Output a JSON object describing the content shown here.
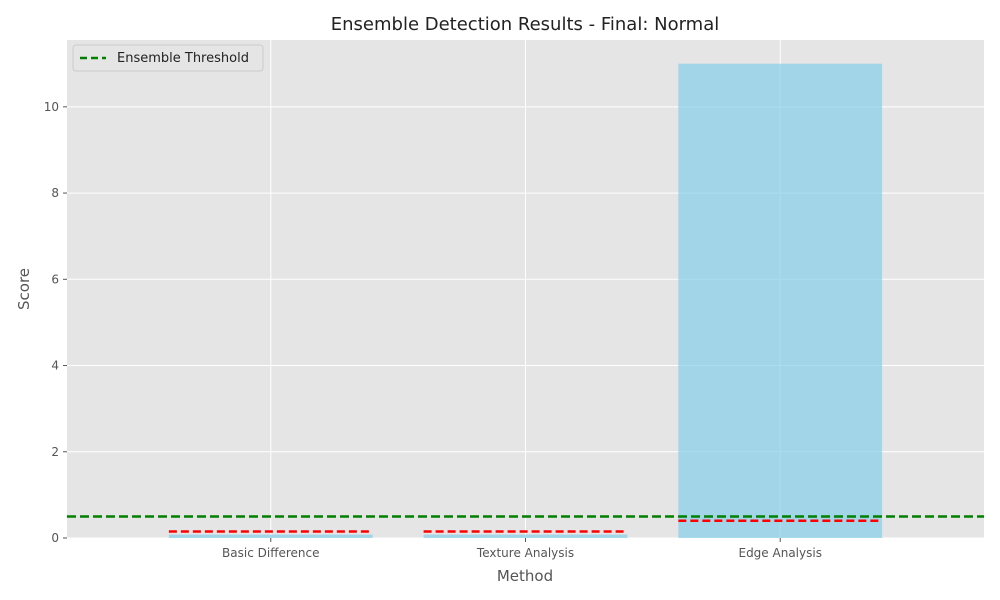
{
  "chart_data": {
    "type": "bar",
    "title": "Ensemble Detection Results - Final: Normal",
    "xlabel": "Method",
    "ylabel": "Score",
    "categories": [
      "Basic Difference",
      "Texture Analysis",
      "Edge Analysis"
    ],
    "values": [
      0.08,
      0.08,
      11.0
    ],
    "method_thresholds": [
      0.15,
      0.15,
      0.4
    ],
    "ensemble_threshold": 0.5,
    "ylim": [
      0,
      11.55
    ],
    "yticks": [
      0,
      2,
      4,
      6,
      8,
      10
    ],
    "grid": true,
    "legend": {
      "position": "top-left",
      "entries": [
        {
          "label": "Ensemble Threshold",
          "color": "#008000",
          "style": "dashed"
        }
      ]
    },
    "colors": {
      "bar": "#87ceeb",
      "method_threshold": "#ff0000",
      "ensemble_threshold": "#008000",
      "plot_background": "#e5e5e5",
      "grid": "#ffffff"
    }
  }
}
